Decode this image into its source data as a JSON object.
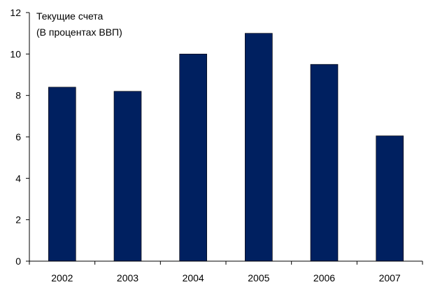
{
  "chart_data": {
    "type": "bar",
    "title_lines": [
      "Текущие счета",
      "(В процентах ВВП)"
    ],
    "categories": [
      "2002",
      "2003",
      "2004",
      "2005",
      "2006",
      "2007"
    ],
    "values": [
      8.4,
      8.2,
      10.0,
      11.0,
      9.5,
      6.05
    ],
    "y_ticks": [
      "0",
      "2",
      "4",
      "6",
      "8",
      "10",
      "12"
    ],
    "ylim": [
      0,
      12
    ],
    "grid": false,
    "legend": "none",
    "bar_color": "#002060",
    "axis_color": "#000000"
  }
}
